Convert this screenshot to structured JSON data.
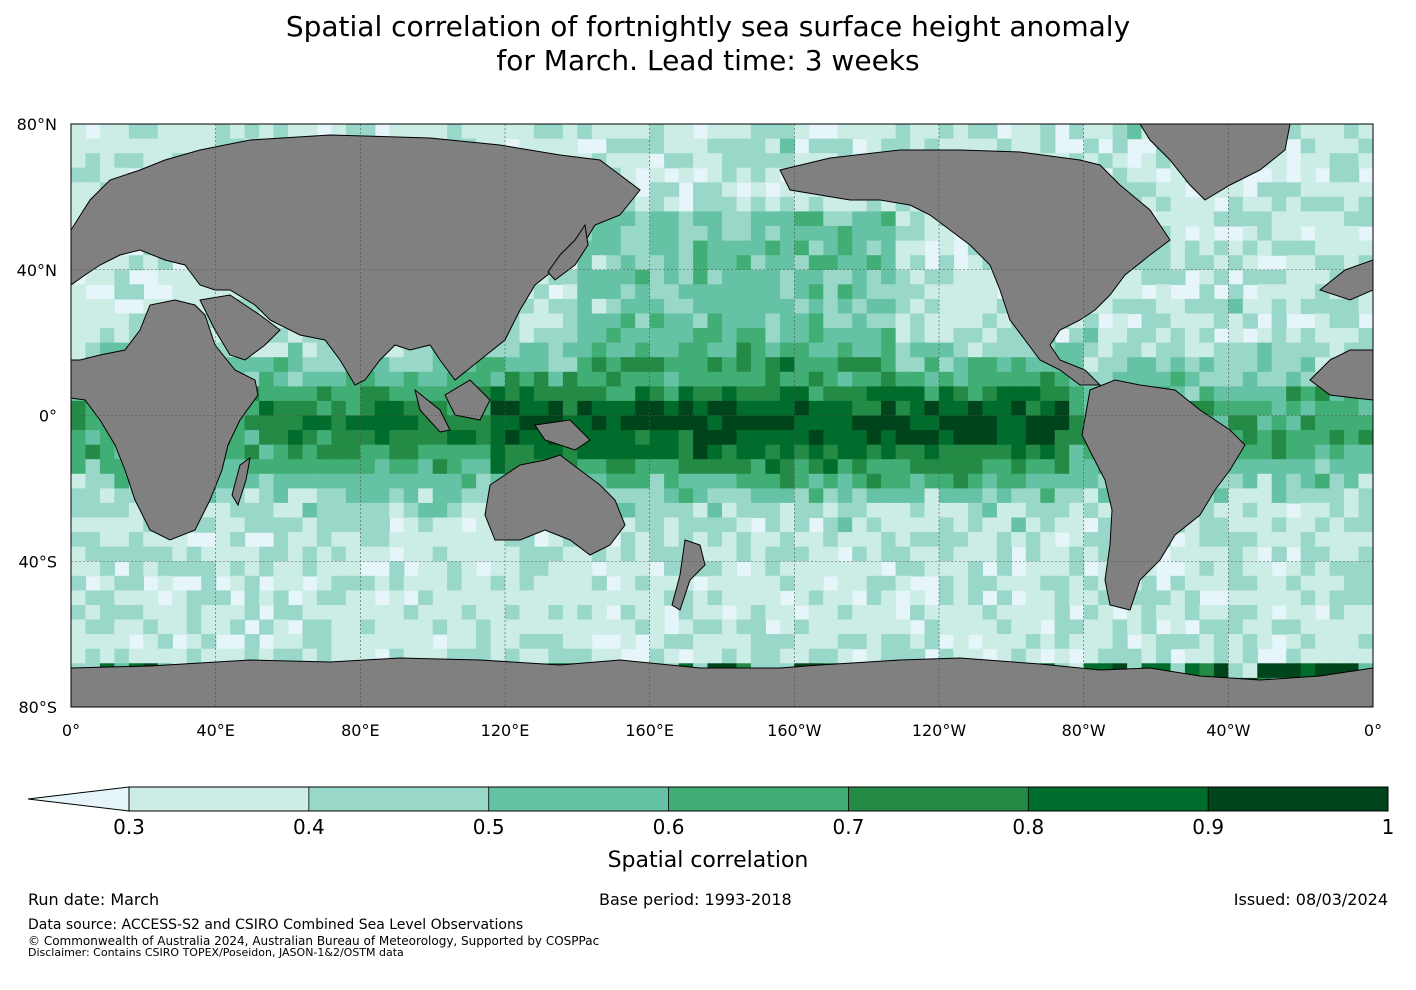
{
  "title": {
    "line1": "Spatial correlation of fortnightly sea surface height anomaly",
    "line2": "for March. Lead time: 3 weeks"
  },
  "map": {
    "lat_labels": [
      "80°N",
      "40°N",
      "0°",
      "40°S",
      "80°S"
    ],
    "lon_labels": [
      "0°",
      "40°E",
      "80°E",
      "120°E",
      "160°E",
      "160°W",
      "120°W",
      "80°W",
      "40°W",
      "0°"
    ],
    "lat_values": [
      80,
      40,
      0,
      -40,
      -80
    ],
    "lon_values": [
      0,
      40,
      80,
      120,
      160,
      200,
      240,
      280,
      320,
      360
    ],
    "land_color": "#808080",
    "ocean_base_color": "#e5f5f9"
  },
  "colorbar": {
    "label": "Spatial correlation",
    "ticks": [
      "0.3",
      "0.4",
      "0.5",
      "0.6",
      "0.7",
      "0.8",
      "0.9",
      "1"
    ],
    "tick_values": [
      0.3,
      0.4,
      0.5,
      0.6,
      0.7,
      0.8,
      0.9,
      1.0
    ],
    "extend": "min",
    "colors": [
      "#ccece6",
      "#99d8c9",
      "#66c2a4",
      "#41ae76",
      "#238b45",
      "#006d2c",
      "#00441b"
    ],
    "under_color": "#e5f5f9"
  },
  "footer": {
    "run_date": "Run date: March",
    "base_period": "Base period: 1993-2018",
    "issued": "Issued: 08/03/2024",
    "data_source": "Data source: ACCESS-S2 and CSIRO Combined Sea Level Observations",
    "copyright": "© Commonwealth of Australia 2024, Australian Bureau of Meteorology, Supported by COSPPac",
    "disclaimer": "Disclaimer: Contains CSIRO TOPEX/Poseidon, JASON-1&2/OSTM data"
  }
}
